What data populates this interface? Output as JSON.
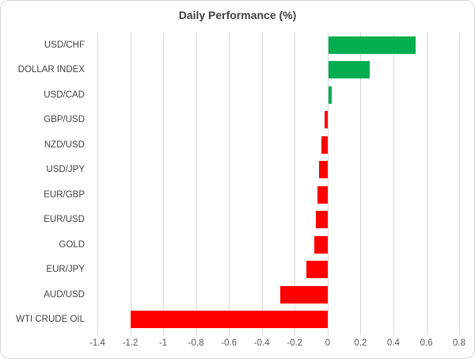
{
  "chart_data": {
    "type": "bar",
    "orientation": "horizontal",
    "title": "Daily Performance (%)",
    "categories": [
      "USD/CHF",
      "DOLLAR INDEX",
      "USD/CAD",
      "GBP/USD",
      "NZD/USD",
      "USD/JPY",
      "EUR/GBP",
      "EUR/USD",
      "GOLD",
      "EUR/JPY",
      "AUD/USD",
      "WTI CRUDE OIL"
    ],
    "values": [
      0.53,
      0.25,
      0.02,
      -0.02,
      -0.04,
      -0.05,
      -0.06,
      -0.07,
      -0.08,
      -0.13,
      -0.29,
      -1.2
    ],
    "xlabel": "",
    "ylabel": "",
    "xlim": [
      -1.4,
      0.8
    ],
    "x_tick_step": 0.2,
    "x_ticks": [
      "-1.4",
      "-1.2",
      "-1",
      "-0.8",
      "-0.6",
      "-0.4",
      "-0.2",
      "0",
      "0.2",
      "0.4",
      "0.6",
      "0.8"
    ],
    "grid": true,
    "legend": false,
    "colors": {
      "positive": "#00AE4F",
      "negative": "#FF0000",
      "gridline": "#D9D9D9",
      "title_text": "#404040",
      "category_text": "#404040",
      "tick_text": "#595959"
    }
  }
}
